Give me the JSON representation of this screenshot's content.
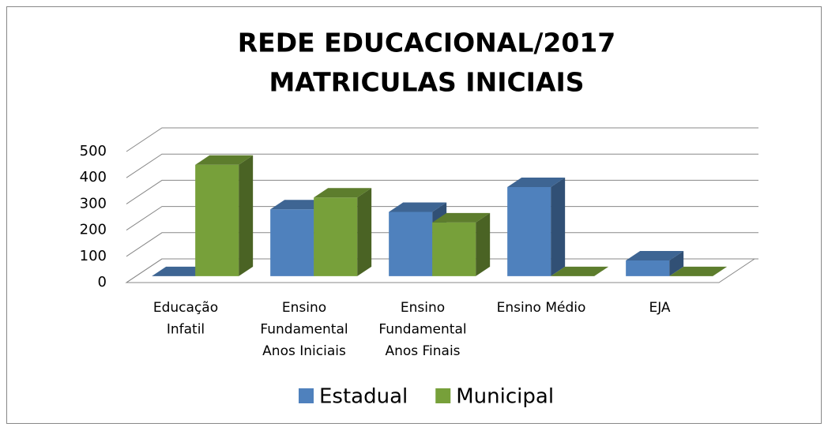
{
  "chart_data": {
    "type": "bar3d",
    "title": [
      "REDE EDUCACIONAL/2017",
      "MATRICULAS INICIAIS"
    ],
    "categories": [
      [
        "Educação",
        "Infatil"
      ],
      [
        "Ensino",
        "Fundamental",
        "Anos Iniciais"
      ],
      [
        "Ensino",
        "Fundamental",
        "Anos Finais"
      ],
      [
        "Ensino Médio"
      ],
      [
        "EJA"
      ]
    ],
    "series": [
      {
        "name": "Estadual",
        "color": "#4f81bd",
        "values": [
          0,
          255,
          245,
          340,
          60
        ]
      },
      {
        "name": "Municipal",
        "color": "#77a03a",
        "values": [
          425,
          300,
          205,
          0,
          0
        ]
      }
    ],
    "ylim": [
      0,
      500
    ],
    "yticks": [
      0,
      100,
      200,
      300,
      400,
      500
    ],
    "grid": true,
    "legend": "bottom"
  }
}
